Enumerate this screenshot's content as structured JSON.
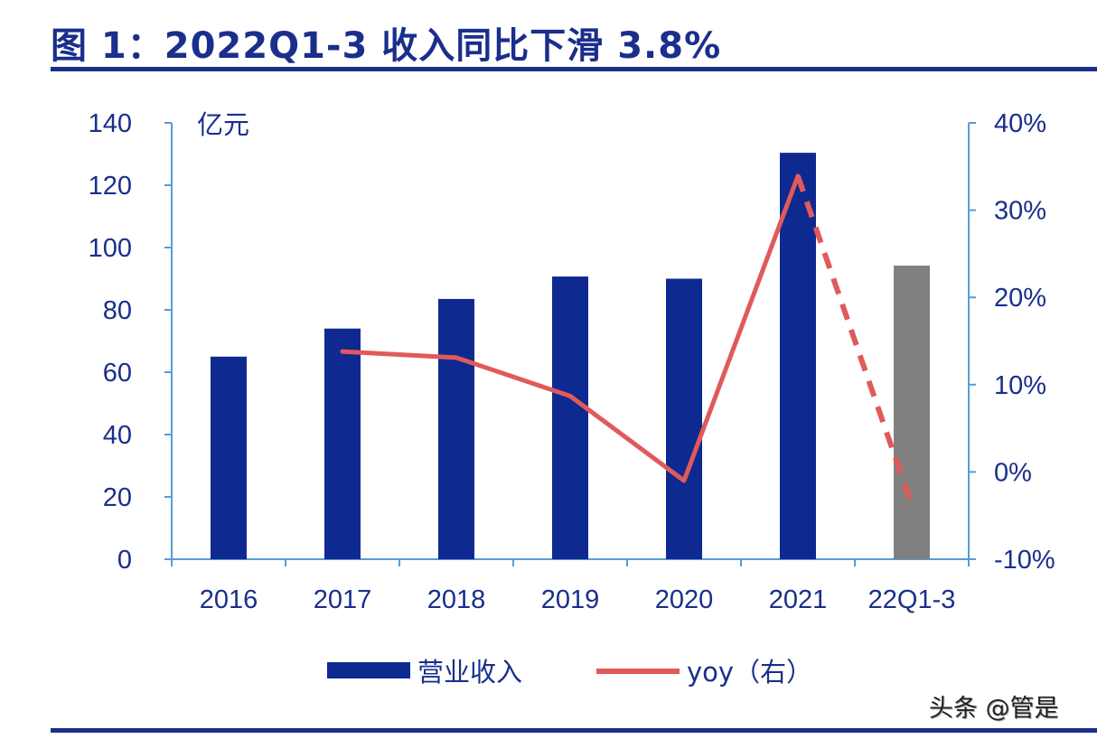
{
  "title": "图 1：2022Q1-3 收入同比下滑 3.8%",
  "watermark": "头条 @管是",
  "chart_data": {
    "type": "bar+line",
    "title": "图 1：2022Q1-3 收入同比下滑 3.8%",
    "categories": [
      "2016",
      "2017",
      "2018",
      "2019",
      "2020",
      "2021",
      "22Q1-3"
    ],
    "left_axis": {
      "unit": "亿元",
      "ylim": [
        0,
        140
      ],
      "ticks": [
        "0",
        "20",
        "40",
        "60",
        "80",
        "100",
        "120",
        "140"
      ]
    },
    "right_axis": {
      "ylim": [
        -10,
        40
      ],
      "ticks": [
        "-10%",
        "0%",
        "10%",
        "20%",
        "30%",
        "40%"
      ]
    },
    "series": [
      {
        "name": "营业收入",
        "type": "bar",
        "axis": "left",
        "values": [
          65,
          74,
          83.5,
          90.7,
          90,
          130.4,
          94.2
        ],
        "color": "#0e2a91",
        "highlight_color": "#808080"
      },
      {
        "name": "yoy（右）",
        "type": "line",
        "axis": "right",
        "values": [
          null,
          13.8,
          13.1,
          8.7,
          -1.0,
          33.9,
          -3.8
        ],
        "color": "#e05a5a",
        "dashed_last_segment": true
      }
    ],
    "legend": "bottom",
    "grid": false
  }
}
